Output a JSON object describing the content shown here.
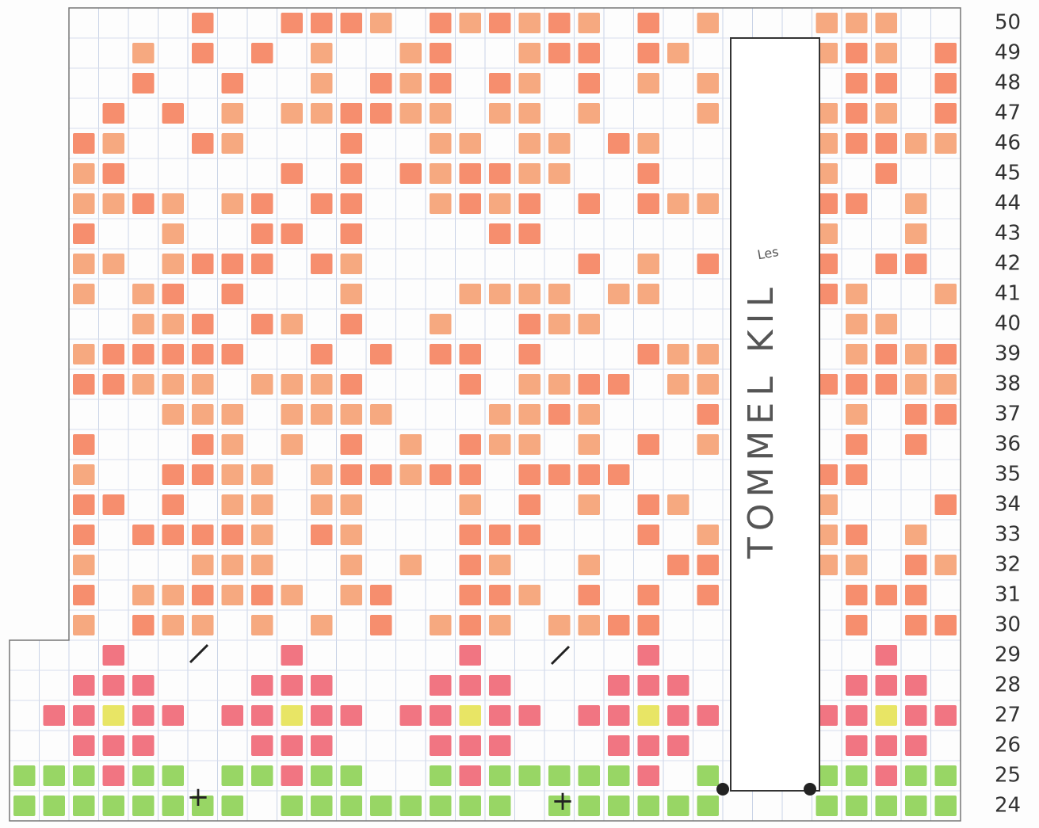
{
  "row_numbers": [
    50,
    49,
    48,
    47,
    46,
    45,
    44,
    43,
    42,
    41,
    40,
    39,
    38,
    37,
    36,
    35,
    34,
    33,
    32,
    31,
    30,
    29,
    28,
    27,
    26,
    25,
    24
  ],
  "thumb_label": "TOMMEL KIL",
  "note": "Les"
}
